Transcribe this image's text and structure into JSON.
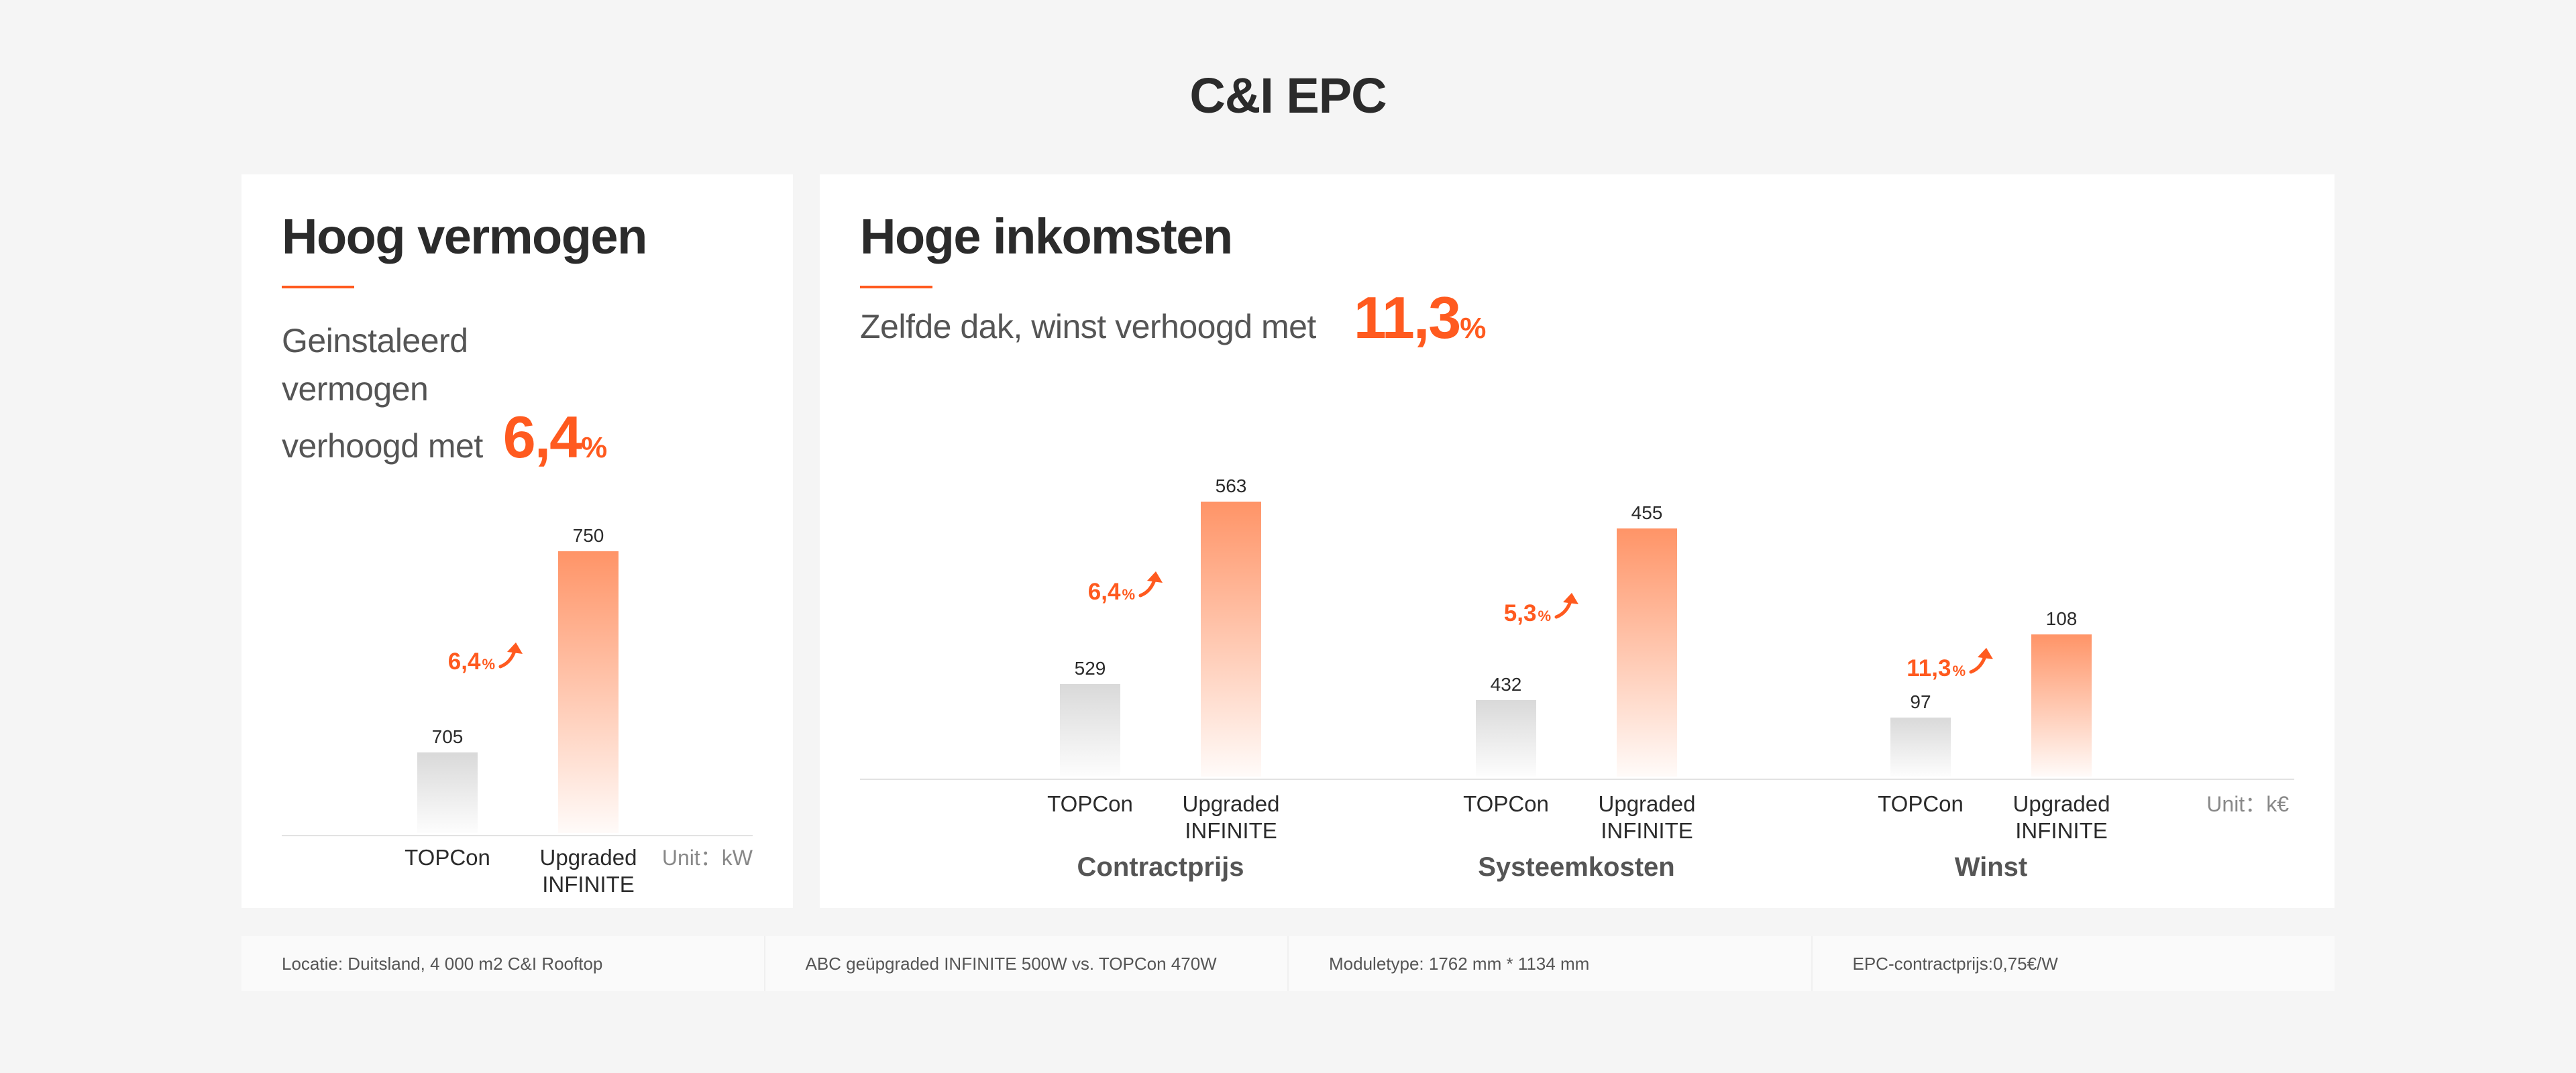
{
  "page": {
    "title": "C&I EPC"
  },
  "cards": {
    "power": {
      "heading": "Hoog vermogen",
      "subtitle_lines": [
        "Geinstaleerd",
        "vermogen",
        "verhoogd met"
      ],
      "highlight_number": "6,4",
      "highlight_sign": "%"
    },
    "income": {
      "heading": "Hoge inkomsten",
      "subtitle": "Zelfde dak, winst verhoogd met",
      "highlight_number": "11,3",
      "highlight_sign": "%"
    }
  },
  "footer": {
    "items": [
      "Locatie: Duitsland, 4 000 m2 C&I Rooftop",
      "ABC geüpgraded INFINITE 500W vs. TOPCon 470W",
      "Moduletype: 1762 mm * 1134 mm",
      "EPC-contractprijs:0,75€/W"
    ]
  },
  "colors": {
    "accent": "#ff5a1f",
    "bar_upgraded": "#ff9467",
    "bar_topcon": "#d9d9d9"
  },
  "chart_data": [
    {
      "type": "bar",
      "title": "Hoog vermogen",
      "unit": "Unit：kW",
      "categories": [
        "TOPCon",
        "Upgraded INFINITE"
      ],
      "category_lines": [
        [
          "TOPCon"
        ],
        [
          "Upgraded",
          "INFINITE"
        ]
      ],
      "values": [
        705,
        750
      ],
      "increase": {
        "number": "6,4",
        "sign": "%"
      }
    },
    {
      "type": "bar",
      "title": "Hoge inkomsten",
      "unit": "Unit：k€",
      "category_lines": [
        [
          "TOPCon"
        ],
        [
          "Upgraded",
          "INFINITE"
        ]
      ],
      "groups": [
        {
          "name": "Contractprijs",
          "categories": [
            "TOPCon",
            "Upgraded INFINITE"
          ],
          "values": [
            529,
            563
          ],
          "increase": {
            "number": "6,4",
            "sign": "%"
          }
        },
        {
          "name": "Systeemkosten",
          "categories": [
            "TOPCon",
            "Upgraded INFINITE"
          ],
          "values": [
            432,
            455
          ],
          "increase": {
            "number": "5,3",
            "sign": "%"
          }
        },
        {
          "name": "Winst",
          "categories": [
            "TOPCon",
            "Upgraded INFINITE"
          ],
          "values": [
            97,
            108
          ],
          "increase": {
            "number": "11,3",
            "sign": "%"
          }
        }
      ]
    }
  ]
}
